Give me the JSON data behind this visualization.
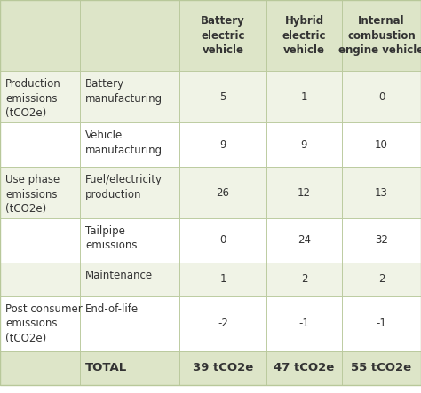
{
  "header_bg": "#dde5c8",
  "row_bg_light": "#f0f3e6",
  "row_bg_white": "#ffffff",
  "total_bg": "#dde5c8",
  "border_color": "#b8c89a",
  "text_color": "#333333",
  "col_headers": [
    "Battery\nelectric\nvehicle",
    "Hybrid\nelectric\nvehicle",
    "Internal\ncombustion\nengine vehicle"
  ],
  "rows": [
    {
      "cat": "Production\nemissions\n(tCO2e)",
      "sub": "Battery\nmanufacturing",
      "vals": [
        "5",
        "1",
        "0"
      ],
      "bg": "#f0f3e6"
    },
    {
      "cat": "",
      "sub": "Vehicle\nmanufacturing",
      "vals": [
        "9",
        "9",
        "10"
      ],
      "bg": "#ffffff"
    },
    {
      "cat": "Use phase\nemissions\n(tCO2e)",
      "sub": "Fuel/electricity\nproduction",
      "vals": [
        "26",
        "12",
        "13"
      ],
      "bg": "#f0f3e6"
    },
    {
      "cat": "",
      "sub": "Tailpipe\nemissions",
      "vals": [
        "0",
        "24",
        "32"
      ],
      "bg": "#ffffff"
    },
    {
      "cat": "",
      "sub": "Maintenance",
      "vals": [
        "1",
        "2",
        "2"
      ],
      "bg": "#f0f3e6"
    },
    {
      "cat": "Post consumer\nemissions\n(tCO2e)",
      "sub": "End-of-life",
      "vals": [
        "-2",
        "-1",
        "-1"
      ],
      "bg": "#ffffff"
    }
  ],
  "total_label": "TOTAL",
  "total_vals": [
    "39 tCO2e",
    "47 tCO2e",
    "55 tCO2e"
  ],
  "header_fontsize": 8.5,
  "cell_fontsize": 8.5
}
